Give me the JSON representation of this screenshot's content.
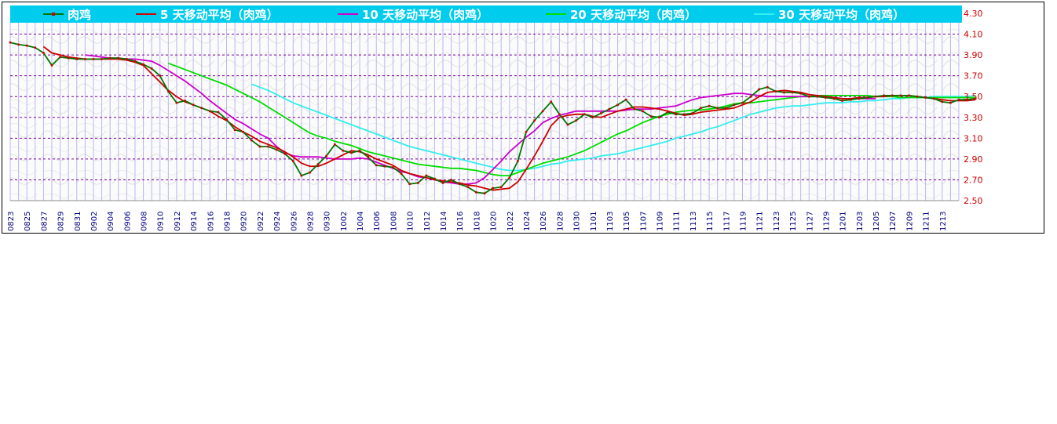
{
  "chart_data": {
    "type": "line",
    "ylim": [
      2.5,
      4.3
    ],
    "yticks": [
      "4.30",
      "4.10",
      "3.90",
      "3.70",
      "3.50",
      "3.30",
      "3.10",
      "2.90",
      "2.70",
      "2.50"
    ],
    "legend_position": "top",
    "grid": true,
    "x_tick_labels": [
      "0823",
      "0825",
      "0827",
      "0829",
      "0831",
      "0902",
      "0904",
      "0906",
      "0908",
      "0910",
      "0912",
      "0914",
      "0916",
      "0918",
      "0920",
      "0922",
      "0924",
      "0926",
      "0928",
      "0930",
      "1002",
      "1004",
      "1006",
      "1008",
      "1010",
      "1012",
      "1014",
      "1016",
      "1018",
      "1020",
      "1022",
      "1024",
      "1026",
      "1028",
      "1030",
      "1101",
      "1103",
      "1105",
      "1107",
      "1109",
      "1111",
      "1113",
      "1115",
      "1117",
      "1119",
      "1121",
      "1123",
      "1125",
      "1127",
      "1129",
      "1201",
      "1203",
      "1205",
      "1207",
      "1209",
      "1211",
      "1213"
    ],
    "series": [
      {
        "name": "肉鸡",
        "color": "#007700",
        "marker_color": "#cc0000",
        "start": 0,
        "values": [
          4.02,
          4.0,
          3.99,
          3.97,
          3.92,
          3.8,
          3.88,
          3.87,
          3.86,
          3.86,
          3.86,
          3.86,
          3.87,
          3.87,
          3.86,
          3.84,
          3.81,
          3.77,
          3.7,
          3.55,
          3.44,
          3.46,
          3.42,
          3.39,
          3.36,
          3.35,
          3.28,
          3.18,
          3.16,
          3.08,
          3.02,
          3.02,
          2.99,
          2.95,
          2.88,
          2.74,
          2.77,
          2.85,
          2.93,
          3.04,
          2.98,
          2.96,
          2.98,
          2.92,
          2.84,
          2.83,
          2.82,
          2.76,
          2.66,
          2.67,
          2.74,
          2.71,
          2.67,
          2.7,
          2.66,
          2.63,
          2.58,
          2.57,
          2.62,
          2.63,
          2.72,
          2.88,
          3.16,
          3.27,
          3.36,
          3.45,
          3.33,
          3.23,
          3.27,
          3.33,
          3.3,
          3.34,
          3.38,
          3.42,
          3.47,
          3.38,
          3.36,
          3.31,
          3.3,
          3.35,
          3.33,
          3.33,
          3.34,
          3.39,
          3.41,
          3.39,
          3.39,
          3.42,
          3.44,
          3.5,
          3.57,
          3.59,
          3.55,
          3.54,
          3.54,
          3.53,
          3.5,
          3.5,
          3.49,
          3.48,
          3.46,
          3.47,
          3.48,
          3.49,
          3.5,
          3.51,
          3.51,
          3.51,
          3.51,
          3.5,
          3.49,
          3.48,
          3.45,
          3.44,
          3.47,
          3.47,
          3.48
        ]
      },
      {
        "name": "5 天移动平均（肉鸡）",
        "color": "#cc0000",
        "start": 4,
        "values": [
          3.98,
          3.92,
          3.9,
          3.88,
          3.87,
          3.86,
          3.86,
          3.86,
          3.86,
          3.86,
          3.85,
          3.83,
          3.8,
          3.72,
          3.64,
          3.56,
          3.5,
          3.45,
          3.42,
          3.39,
          3.36,
          3.31,
          3.27,
          3.21,
          3.16,
          3.12,
          3.07,
          3.04,
          3.01,
          2.97,
          2.92,
          2.86,
          2.83,
          2.83,
          2.86,
          2.9,
          2.94,
          2.98,
          2.97,
          2.94,
          2.9,
          2.87,
          2.84,
          2.79,
          2.76,
          2.74,
          2.72,
          2.7,
          2.69,
          2.68,
          2.67,
          2.65,
          2.64,
          2.62,
          2.6,
          2.61,
          2.62,
          2.68,
          2.8,
          2.93,
          3.07,
          3.22,
          3.3,
          3.32,
          3.33,
          3.33,
          3.31,
          3.3,
          3.33,
          3.36,
          3.38,
          3.4,
          3.4,
          3.39,
          3.38,
          3.36,
          3.34,
          3.32,
          3.33,
          3.35,
          3.36,
          3.37,
          3.38,
          3.39,
          3.42,
          3.45,
          3.5,
          3.54,
          3.55,
          3.56,
          3.55,
          3.54,
          3.52,
          3.51,
          3.5,
          3.49,
          3.48,
          3.48,
          3.49,
          3.49,
          3.5,
          3.5,
          3.51,
          3.51,
          3.51,
          3.5,
          3.49,
          3.48,
          3.47,
          3.46,
          3.46,
          3.46,
          3.47
        ]
      },
      {
        "name": "10 天移动平均（肉鸡）",
        "color": "#cc00cc",
        "start": 9,
        "values": [
          3.9,
          3.89,
          3.88,
          3.87,
          3.87,
          3.86,
          3.86,
          3.85,
          3.84,
          3.8,
          3.75,
          3.7,
          3.65,
          3.59,
          3.53,
          3.46,
          3.4,
          3.34,
          3.28,
          3.24,
          3.19,
          3.14,
          3.1,
          3.02,
          2.96,
          2.93,
          2.92,
          2.92,
          2.92,
          2.91,
          2.9,
          2.9,
          2.9,
          2.91,
          2.9,
          2.87,
          2.84,
          2.81,
          2.78,
          2.76,
          2.73,
          2.72,
          2.7,
          2.68,
          2.67,
          2.66,
          2.66,
          2.67,
          2.72,
          2.8,
          2.88,
          2.97,
          3.04,
          3.11,
          3.17,
          3.25,
          3.29,
          3.32,
          3.34,
          3.36,
          3.36,
          3.36,
          3.36,
          3.36,
          3.36,
          3.37,
          3.38,
          3.38,
          3.38,
          3.39,
          3.4,
          3.41,
          3.44,
          3.47,
          3.49,
          3.5,
          3.51,
          3.52,
          3.53,
          3.53,
          3.52,
          3.51,
          3.5,
          3.5,
          3.5,
          3.5,
          3.5,
          3.5,
          3.5,
          3.49,
          3.49,
          3.48,
          3.48,
          3.48,
          3.48,
          3.48
        ]
      },
      {
        "name": "20 天移动平均（肉鸡）",
        "color": "#00dd00",
        "start": 19,
        "values": [
          3.82,
          3.79,
          3.76,
          3.73,
          3.7,
          3.67,
          3.64,
          3.61,
          3.57,
          3.53,
          3.49,
          3.45,
          3.4,
          3.35,
          3.3,
          3.25,
          3.2,
          3.15,
          3.12,
          3.1,
          3.07,
          3.05,
          3.03,
          3.0,
          2.97,
          2.95,
          2.93,
          2.91,
          2.89,
          2.87,
          2.85,
          2.84,
          2.83,
          2.82,
          2.81,
          2.81,
          2.8,
          2.79,
          2.77,
          2.75,
          2.74,
          2.74,
          2.77,
          2.8,
          2.83,
          2.86,
          2.88,
          2.9,
          2.92,
          2.95,
          2.98,
          3.02,
          3.06,
          3.1,
          3.14,
          3.17,
          3.21,
          3.25,
          3.28,
          3.31,
          3.33,
          3.35,
          3.36,
          3.37,
          3.37,
          3.38,
          3.39,
          3.41,
          3.43,
          3.44,
          3.44,
          3.45,
          3.46,
          3.47,
          3.48,
          3.49,
          3.5,
          3.5,
          3.51,
          3.51,
          3.51,
          3.51,
          3.51,
          3.51,
          3.51,
          3.5,
          3.5,
          3.5,
          3.49,
          3.49,
          3.49,
          3.49,
          3.49,
          3.49,
          3.49,
          3.49,
          3.49,
          3.49
        ]
      },
      {
        "name": "30 天移动平均（肉鸡）",
        "color": "#33eeee",
        "start": 29,
        "values": [
          3.62,
          3.59,
          3.56,
          3.52,
          3.48,
          3.44,
          3.41,
          3.38,
          3.35,
          3.32,
          3.29,
          3.26,
          3.23,
          3.2,
          3.17,
          3.14,
          3.11,
          3.08,
          3.05,
          3.02,
          3.0,
          2.98,
          2.96,
          2.94,
          2.92,
          2.9,
          2.88,
          2.86,
          2.84,
          2.82,
          2.8,
          2.79,
          2.79,
          2.8,
          2.81,
          2.83,
          2.85,
          2.86,
          2.88,
          2.89,
          2.9,
          2.91,
          2.93,
          2.94,
          2.95,
          2.97,
          2.99,
          3.01,
          3.03,
          3.05,
          3.07,
          3.1,
          3.12,
          3.14,
          3.16,
          3.19,
          3.21,
          3.24,
          3.27,
          3.3,
          3.33,
          3.35,
          3.37,
          3.39,
          3.4,
          3.41,
          3.41,
          3.42,
          3.43,
          3.44,
          3.44,
          3.44,
          3.45,
          3.45,
          3.46,
          3.46,
          3.47,
          3.48,
          3.48,
          3.49,
          3.49,
          3.49,
          3.5,
          3.5,
          3.5,
          3.5,
          3.5,
          3.51
        ]
      }
    ]
  }
}
